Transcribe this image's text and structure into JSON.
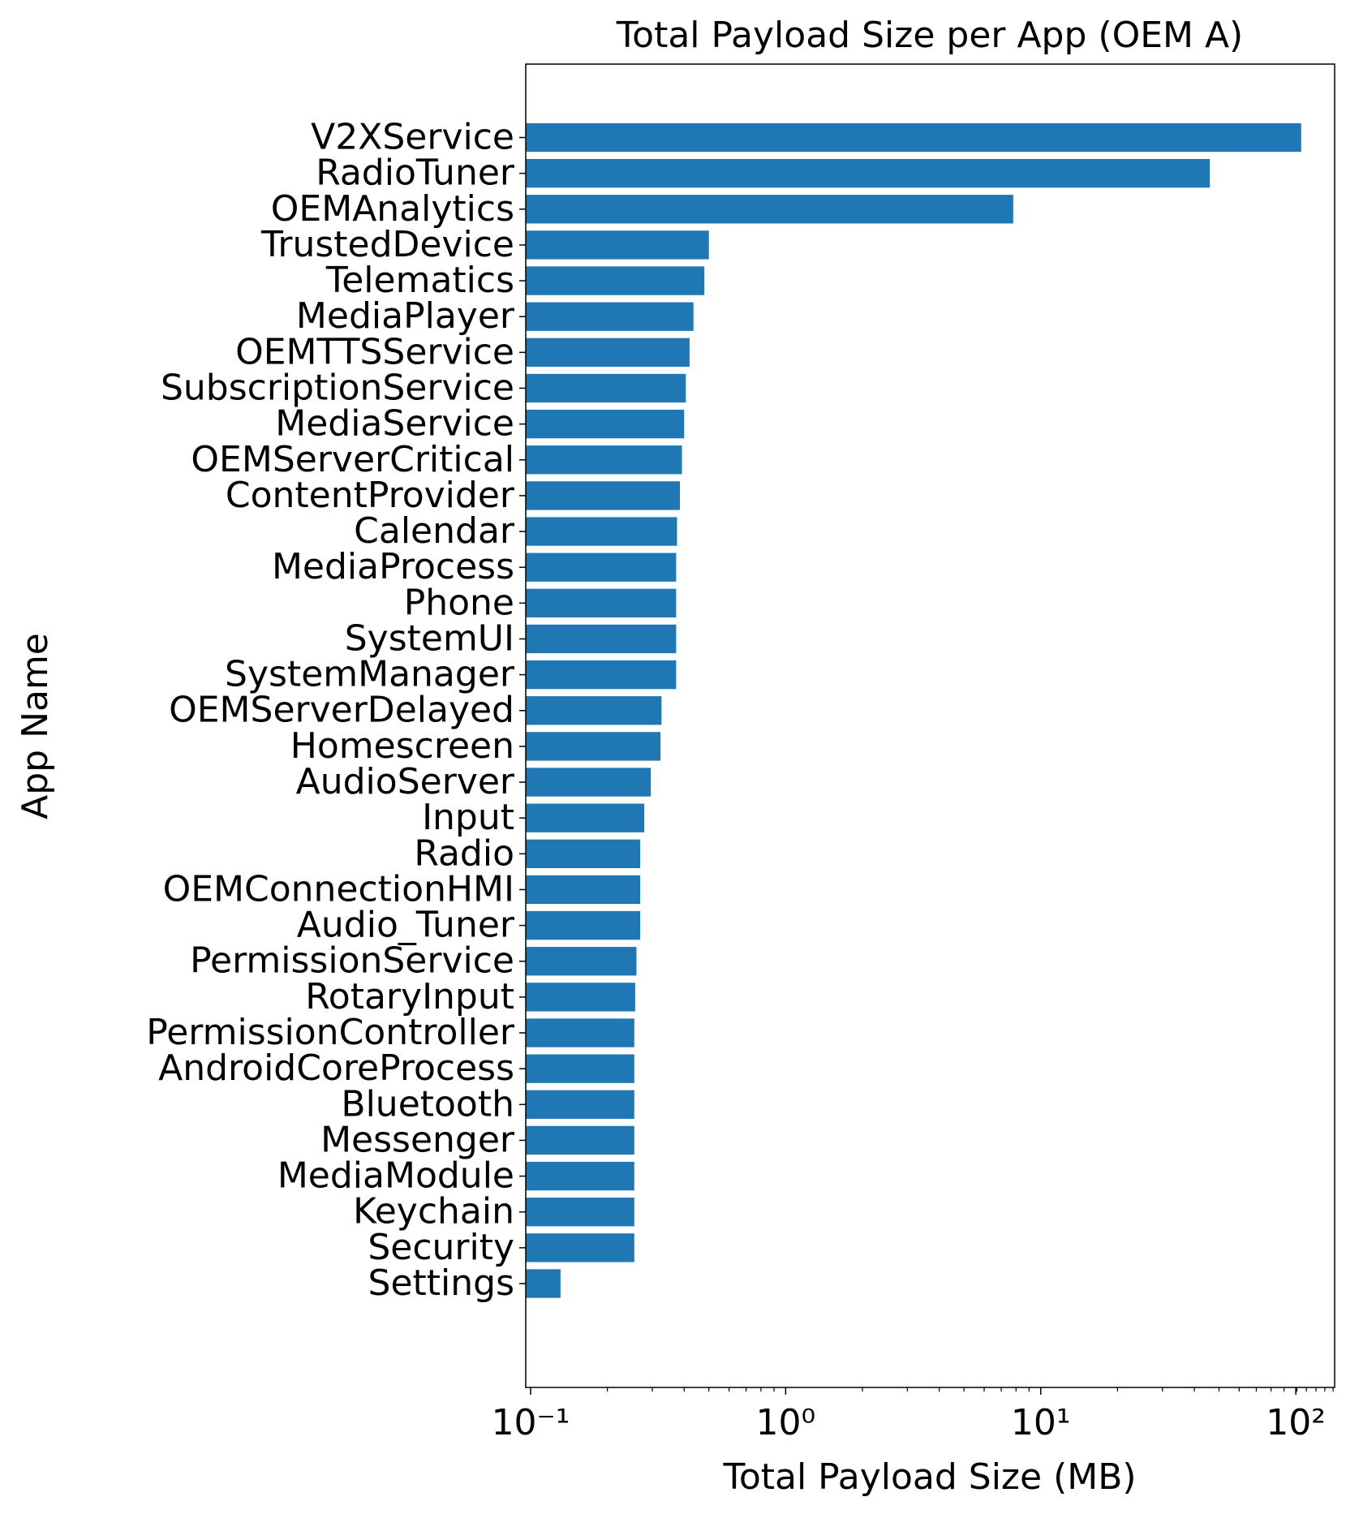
{
  "chart_data": {
    "type": "barh",
    "title": "Total Payload Size per App (OEM A)",
    "x_label": "Total Payload Size (MB)",
    "y_label": "App Name",
    "categories": [
      "V2XService",
      "RadioTuner",
      "OEMAnalytics",
      "TrustedDevice",
      "Telematics",
      "MediaPlayer",
      "OEMTTSService",
      "SubscriptionService",
      "MediaService",
      "OEMServerCritical",
      "ContentProvider",
      "Calendar",
      "MediaProcess",
      "Phone",
      "SystemUI",
      "SystemManager",
      "OEMServerDelayed",
      "Homescreen",
      "AudioServer",
      "Input",
      "Radio",
      "OEMConnectionHMI",
      "Audio_Tuner",
      "PermissionService",
      "RotaryInput",
      "PermissionController",
      "AndroidCoreProcess",
      "Bluetooth",
      "Messenger",
      "MediaModule",
      "Keychain",
      "Security",
      "Settings"
    ],
    "values": [
      105,
      46,
      7.8,
      0.5,
      0.48,
      0.435,
      0.42,
      0.406,
      0.4,
      0.392,
      0.385,
      0.375,
      0.372,
      0.372,
      0.372,
      0.372,
      0.326,
      0.323,
      0.296,
      0.279,
      0.269,
      0.269,
      0.269,
      0.26,
      0.257,
      0.255,
      0.255,
      0.255,
      0.255,
      0.255,
      0.255,
      0.255,
      0.131
    ],
    "color": "#1f77b4",
    "xscale": "log",
    "xlim": [
      0.0957,
      142
    ],
    "xticks": [
      {
        "value": 0.1,
        "label": "10⁻¹"
      },
      {
        "value": 1,
        "label": "10⁰"
      },
      {
        "value": 10,
        "label": "10¹"
      },
      {
        "value": 100,
        "label": "10²"
      }
    ],
    "xminorticks": [
      0.2,
      0.3,
      0.4,
      0.5,
      0.6,
      0.7,
      0.8,
      0.9,
      2,
      3,
      4,
      5,
      6,
      7,
      8,
      9,
      20,
      30,
      40,
      50,
      60,
      70,
      80,
      90,
      101,
      110,
      120,
      130,
      140
    ]
  }
}
